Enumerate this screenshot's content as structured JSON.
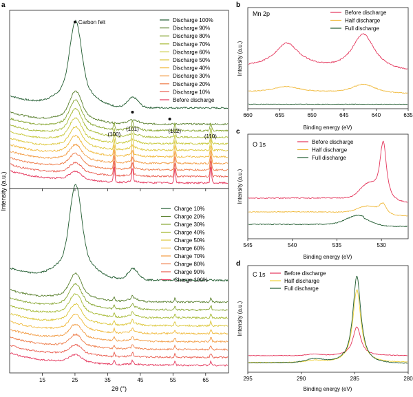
{
  "chart_data": [
    {
      "panel": "a",
      "type": "line",
      "subplot": "discharge",
      "ylabel": "Intensity (a.u.)",
      "xlim": [
        5,
        72
      ],
      "annotations": [
        {
          "text": "Carbon felt",
          "x": 25,
          "marker": "dot"
        },
        {
          "text": "(100)",
          "x": 37
        },
        {
          "text": "(101)",
          "x": 42.6
        },
        {
          "text": "(102)",
          "x": 55.5
        },
        {
          "text": "(110)",
          "x": 66.5
        }
      ],
      "extra_markers": [
        {
          "x": 42.6,
          "marker": "dot"
        },
        {
          "x": 54,
          "marker": "dot"
        }
      ],
      "legend_position": "top-right",
      "series": [
        {
          "name": "Discharge 100%",
          "color": "#1f5a2e"
        },
        {
          "name": "Discharge 90%",
          "color": "#587f2c"
        },
        {
          "name": "Discharge 80%",
          "color": "#86a531"
        },
        {
          "name": "Discharge 70%",
          "color": "#a6b933"
        },
        {
          "name": "Discharge 60%",
          "color": "#c6c735"
        },
        {
          "name": "Discharge 50%",
          "color": "#dcc637"
        },
        {
          "name": "Discharge 40%",
          "color": "#f0b93a"
        },
        {
          "name": "Discharge 30%",
          "color": "#f29a40"
        },
        {
          "name": "Discharge 20%",
          "color": "#ee7b47"
        },
        {
          "name": "Discharge 10%",
          "color": "#e95a4c"
        },
        {
          "name": "Before discharge",
          "color": "#e4345a"
        }
      ]
    },
    {
      "panel": "a",
      "type": "line",
      "subplot": "charge",
      "xlabel": "2θ (°)",
      "xlim": [
        5,
        72
      ],
      "xticks": [
        15,
        25,
        35,
        45,
        55,
        65
      ],
      "legend_position": "top-right",
      "series": [
        {
          "name": "Charge 10%",
          "color": "#1f5a2e"
        },
        {
          "name": "Charge 20%",
          "color": "#587f2c"
        },
        {
          "name": "Charge 30%",
          "color": "#86a531"
        },
        {
          "name": "Charge 40%",
          "color": "#a6b933"
        },
        {
          "name": "Charge 50%",
          "color": "#dcc637"
        },
        {
          "name": "Charge 60%",
          "color": "#f0b93a"
        },
        {
          "name": "Charge 70%",
          "color": "#f29a40"
        },
        {
          "name": "Charge 80%",
          "color": "#ee7b47"
        },
        {
          "name": "Charge 90%",
          "color": "#e95a4c"
        },
        {
          "name": "Charge 100%",
          "color": "#e4345a"
        }
      ]
    },
    {
      "panel": "b",
      "title": "Mn 2p",
      "type": "line",
      "xlabel": "Binding energy (eV)",
      "ylabel": "Intensity (a.u.)",
      "xlim": [
        660,
        635
      ],
      "xticks": [
        660,
        655,
        650,
        645,
        640,
        635
      ],
      "peaks": [
        654,
        642
      ],
      "legend_position": "top-right",
      "series": [
        {
          "name": "Before discharge",
          "color": "#e4345a"
        },
        {
          "name": "Half discharge",
          "color": "#f0b93a"
        },
        {
          "name": "Full discharge",
          "color": "#1f5a2e"
        }
      ]
    },
    {
      "panel": "c",
      "title": "O 1s",
      "type": "line",
      "xlabel": "Binding energy (eV)",
      "ylabel": "Intensity (a.u.)",
      "xlim": [
        545,
        527
      ],
      "xticks": [
        545,
        540,
        535,
        530
      ],
      "peaks": [
        529.8,
        531.5
      ],
      "legend_position": "top-right",
      "series": [
        {
          "name": "Before discharge",
          "color": "#e4345a"
        },
        {
          "name": "Half discharge",
          "color": "#f0b93a"
        },
        {
          "name": "Full discharge",
          "color": "#1f5a2e"
        }
      ]
    },
    {
      "panel": "d",
      "title": "C 1s",
      "type": "line",
      "xlabel": "Binding energy (eV)",
      "ylabel": "Intensity (a.u.)",
      "xlim": [
        295,
        280
      ],
      "xticks": [
        295,
        290,
        285,
        280
      ],
      "peaks": [
        284.8,
        288.8
      ],
      "legend_position": "top-left",
      "series": [
        {
          "name": "Before discharge",
          "color": "#e4345a"
        },
        {
          "name": "Half discharge",
          "color": "#f0d23a"
        },
        {
          "name": "Full discharge",
          "color": "#1f5a2e"
        }
      ]
    }
  ]
}
